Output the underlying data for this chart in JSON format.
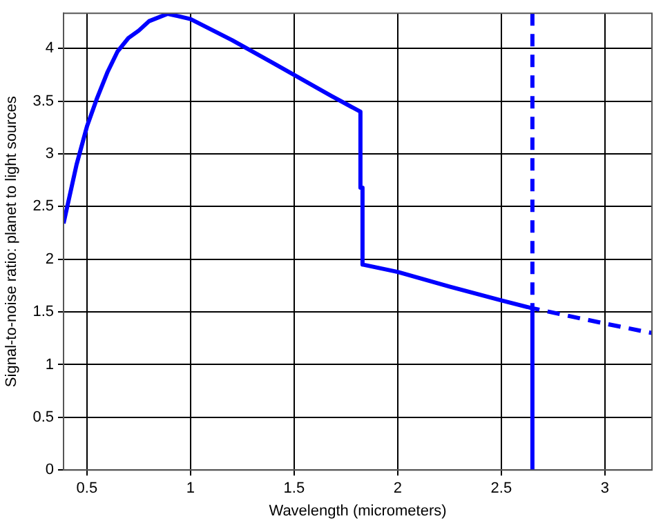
{
  "chart_data": {
    "type": "line",
    "xlabel": "Wavelength (micrometers)",
    "ylabel": "Signal-to-noise ratio: planet to light sources",
    "xlim": [
      0.387,
      3.227
    ],
    "ylim": [
      0,
      4.335
    ],
    "xticks": [
      0.5,
      1,
      1.5,
      2,
      2.5,
      3
    ],
    "yticks": [
      0,
      0.5,
      1,
      1.5,
      2,
      2.5,
      3,
      3.5,
      4
    ],
    "grid": true,
    "legend": false,
    "marker": "none",
    "series": [
      {
        "color": "#0000ff",
        "line_style": "solid",
        "x": [
          0.387,
          0.45,
          0.5,
          0.547,
          0.6,
          0.647,
          0.7,
          0.75,
          0.8,
          0.89,
          1.0,
          1.2,
          1.4,
          1.68,
          1.82,
          1.82,
          1.83,
          1.83,
          2.0,
          2.25,
          2.5,
          2.65,
          2.65
        ],
        "values": [
          2.34,
          2.9,
          3.26,
          3.52,
          3.78,
          3.97,
          4.1,
          4.17,
          4.26,
          4.33,
          4.28,
          4.08,
          3.86,
          3.55,
          3.4,
          2.68,
          2.68,
          1.95,
          1.88,
          1.74,
          1.61,
          1.535,
          0
        ]
      },
      {
        "color": "#0000ff",
        "line_style": "dashed",
        "x": [
          2.65,
          2.65,
          3.0,
          3.227
        ],
        "values": [
          4.335,
          1.535,
          1.39,
          1.3
        ]
      }
    ]
  }
}
